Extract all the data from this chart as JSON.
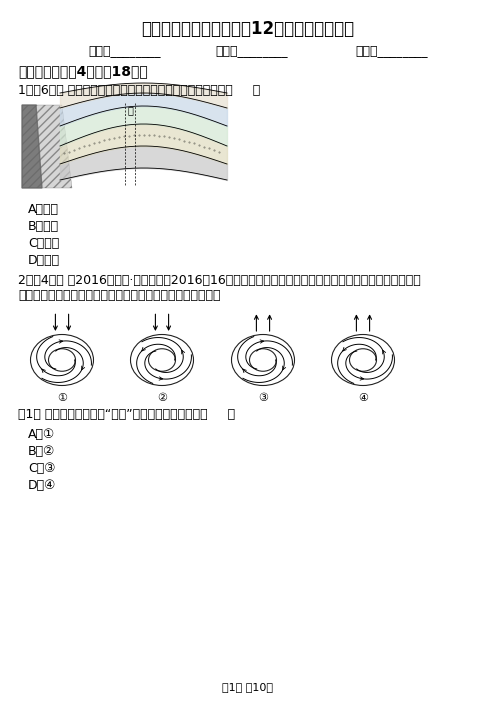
{
  "title": "山东省高三上学期地理！12月月考试卷（文）",
  "name_label": "姓名：________",
  "class_label": "班级：________",
  "score_label": "成绩：________",
  "section1_title": "一、选择题（关4题；內18分）",
  "q1_text": "1．（6分） 下图是地质构造示意图，图中甲处的地质构造是（     ）",
  "q1_options": [
    "A．向斜",
    "B．背斜",
    "C．断层",
    "D．覂皱"
  ],
  "q2_line1": "2．（4分） （2016高一上·泰州期末）2016年16号台风马勒卡还没消散，新的台风（鲤鱼）胚胎已经冒了出",
  "q2_line2": "来，严重影响我国国庆长假多地出行。读图，完成下列各题。",
  "q2_sub1": "（1） 下图中能正确表示“鲤鱼”的天气系统示意图是（     ）",
  "q2_sub1_options": [
    "A．①",
    "B．②",
    "C．③",
    "D．④"
  ],
  "page_footer": "第1页 內10页",
  "bg_color": "#ffffff",
  "text_color": "#000000"
}
